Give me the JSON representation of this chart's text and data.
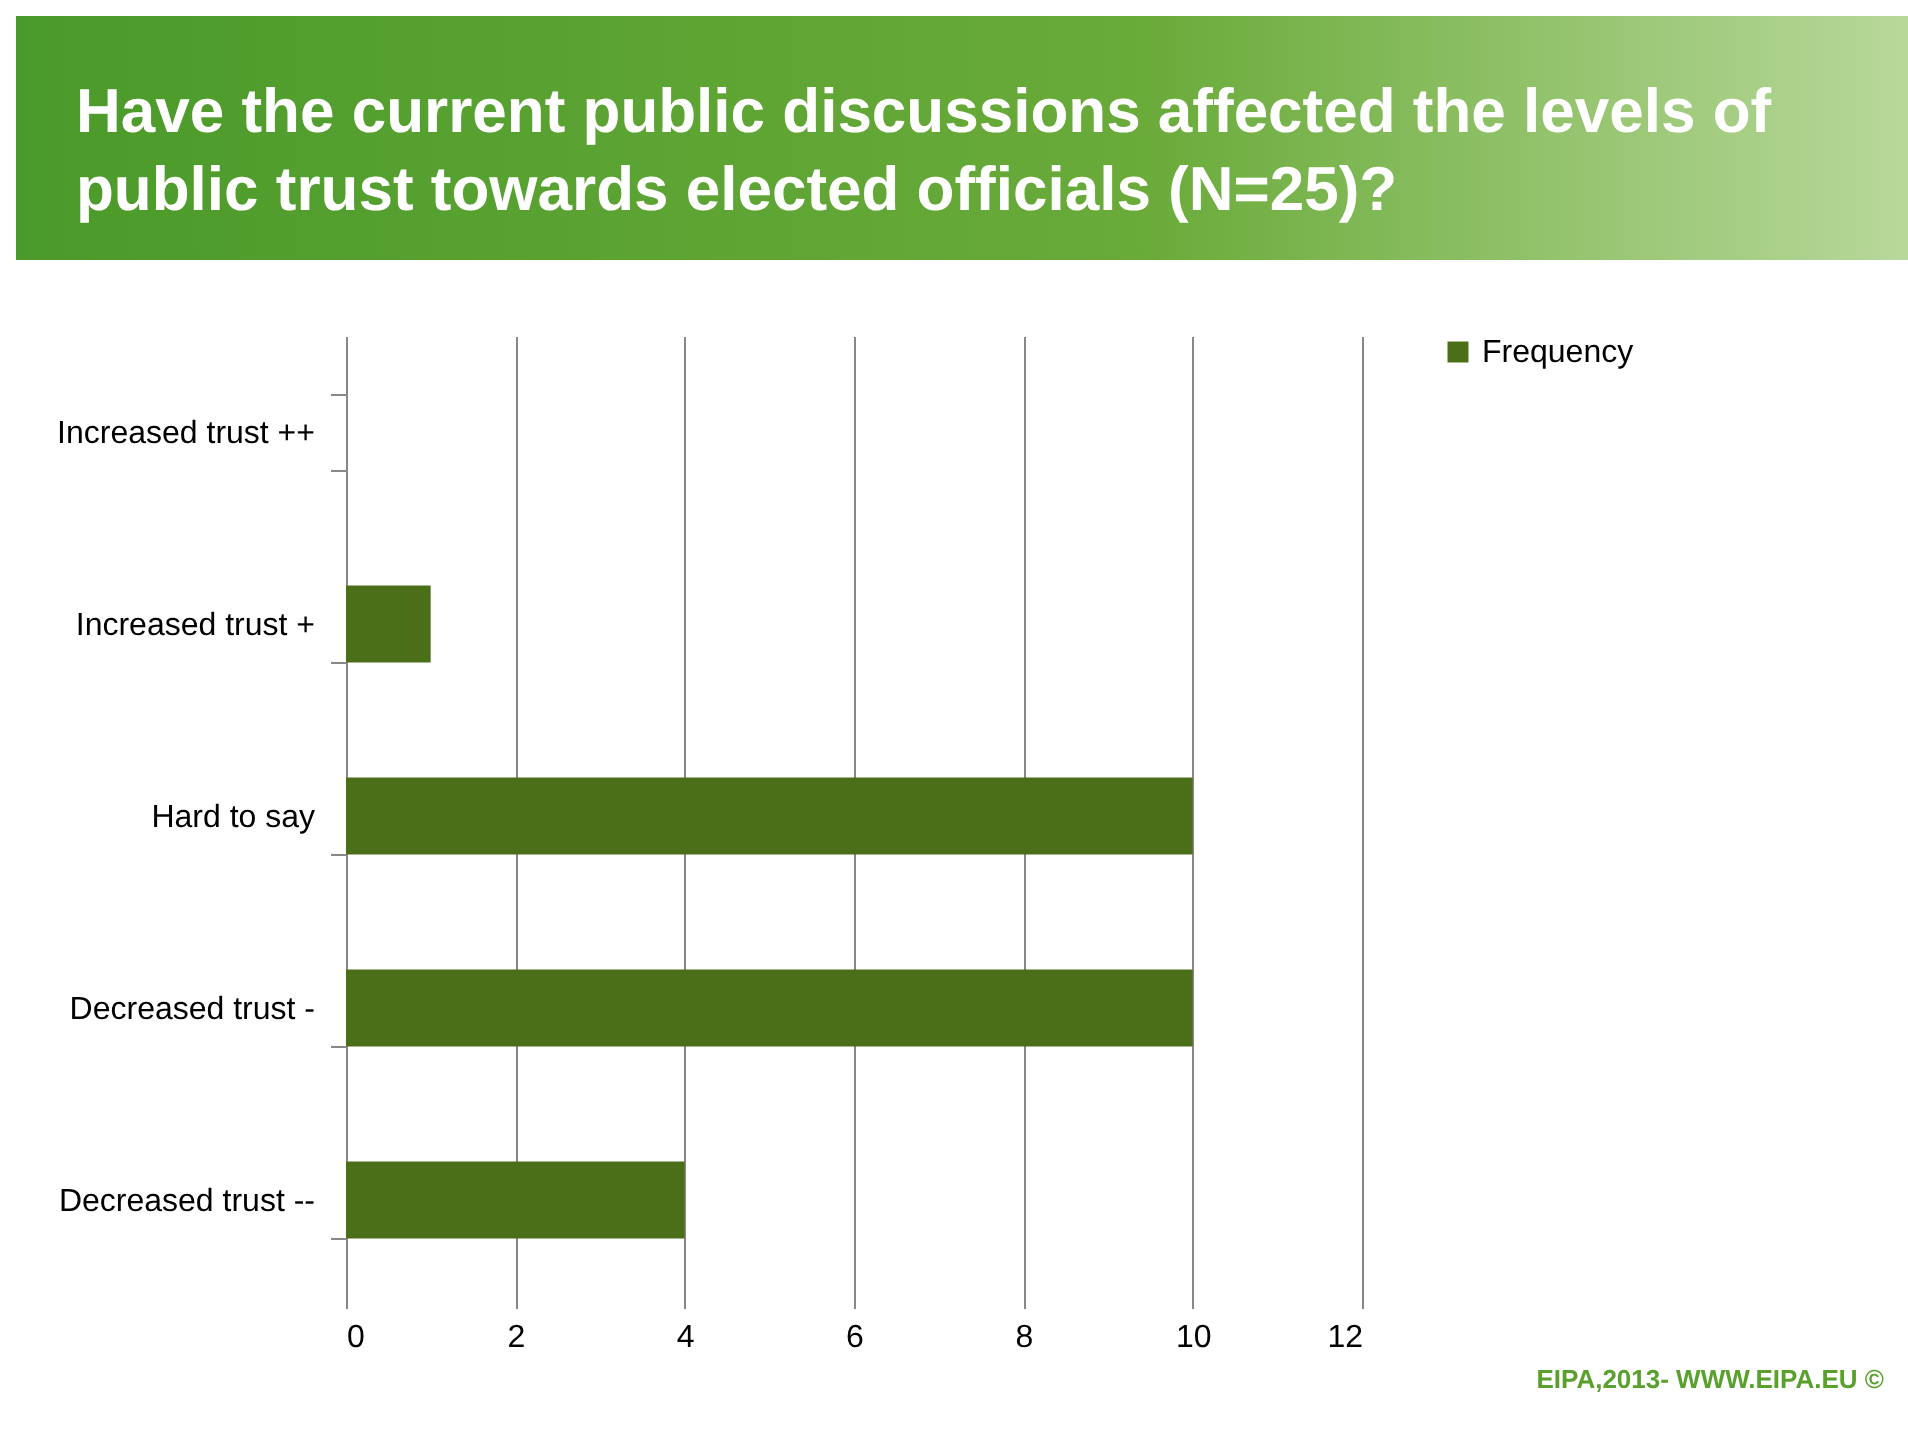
{
  "chart_data": {
    "type": "bar",
    "orientation": "horizontal",
    "title": "Have the current public discussions affected the levels of public trust towards elected officials (N=25)?",
    "categories": [
      "Increased trust ++",
      "Increased trust +",
      "Hard to say",
      "Decreased trust -",
      "Decreased trust --"
    ],
    "series": [
      {
        "name": "Frequency",
        "color": "#4a6f18",
        "values": [
          0,
          1,
          10,
          10,
          4
        ]
      }
    ],
    "xlim": [
      0,
      12
    ],
    "xticks": [
      0,
      2,
      4,
      6,
      8,
      10,
      12
    ],
    "grid": "x",
    "legend": "right",
    "annotations": [
      "EIPA,2013- WWW.EIPA.EU ©"
    ]
  }
}
